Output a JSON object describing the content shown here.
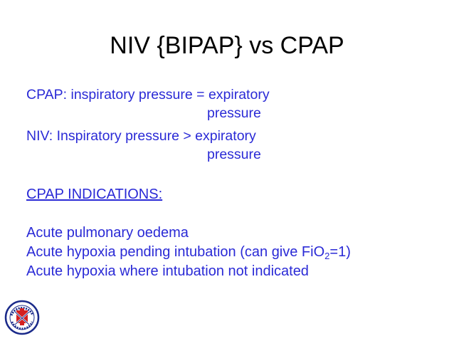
{
  "slide": {
    "title": "NIV {BIPAP} vs CPAP",
    "definitions": [
      {
        "line1": "CPAP: inspiratory pressure = expiratory",
        "line2": "pressure"
      },
      {
        "line1": "NIV: Inspiratory pressure > expiratory",
        "line2": "pressure"
      }
    ],
    "indications": {
      "heading": "CPAP INDICATIONS:",
      "item1": "Acute pulmonary oedema",
      "item2_pre": "Acute hypoxia pending intubation (can give FiO",
      "item2_sub": "2",
      "item2_post": "=1)",
      "item3": "Acute hypoxia where intubation not indicated"
    },
    "colors": {
      "title": "#000000",
      "body_text": "#2a2ad6",
      "logo_red": "#d42020",
      "logo_blue": "#1a2a8a"
    },
    "logo": {
      "icon": "hospital-emblem-icon"
    }
  }
}
